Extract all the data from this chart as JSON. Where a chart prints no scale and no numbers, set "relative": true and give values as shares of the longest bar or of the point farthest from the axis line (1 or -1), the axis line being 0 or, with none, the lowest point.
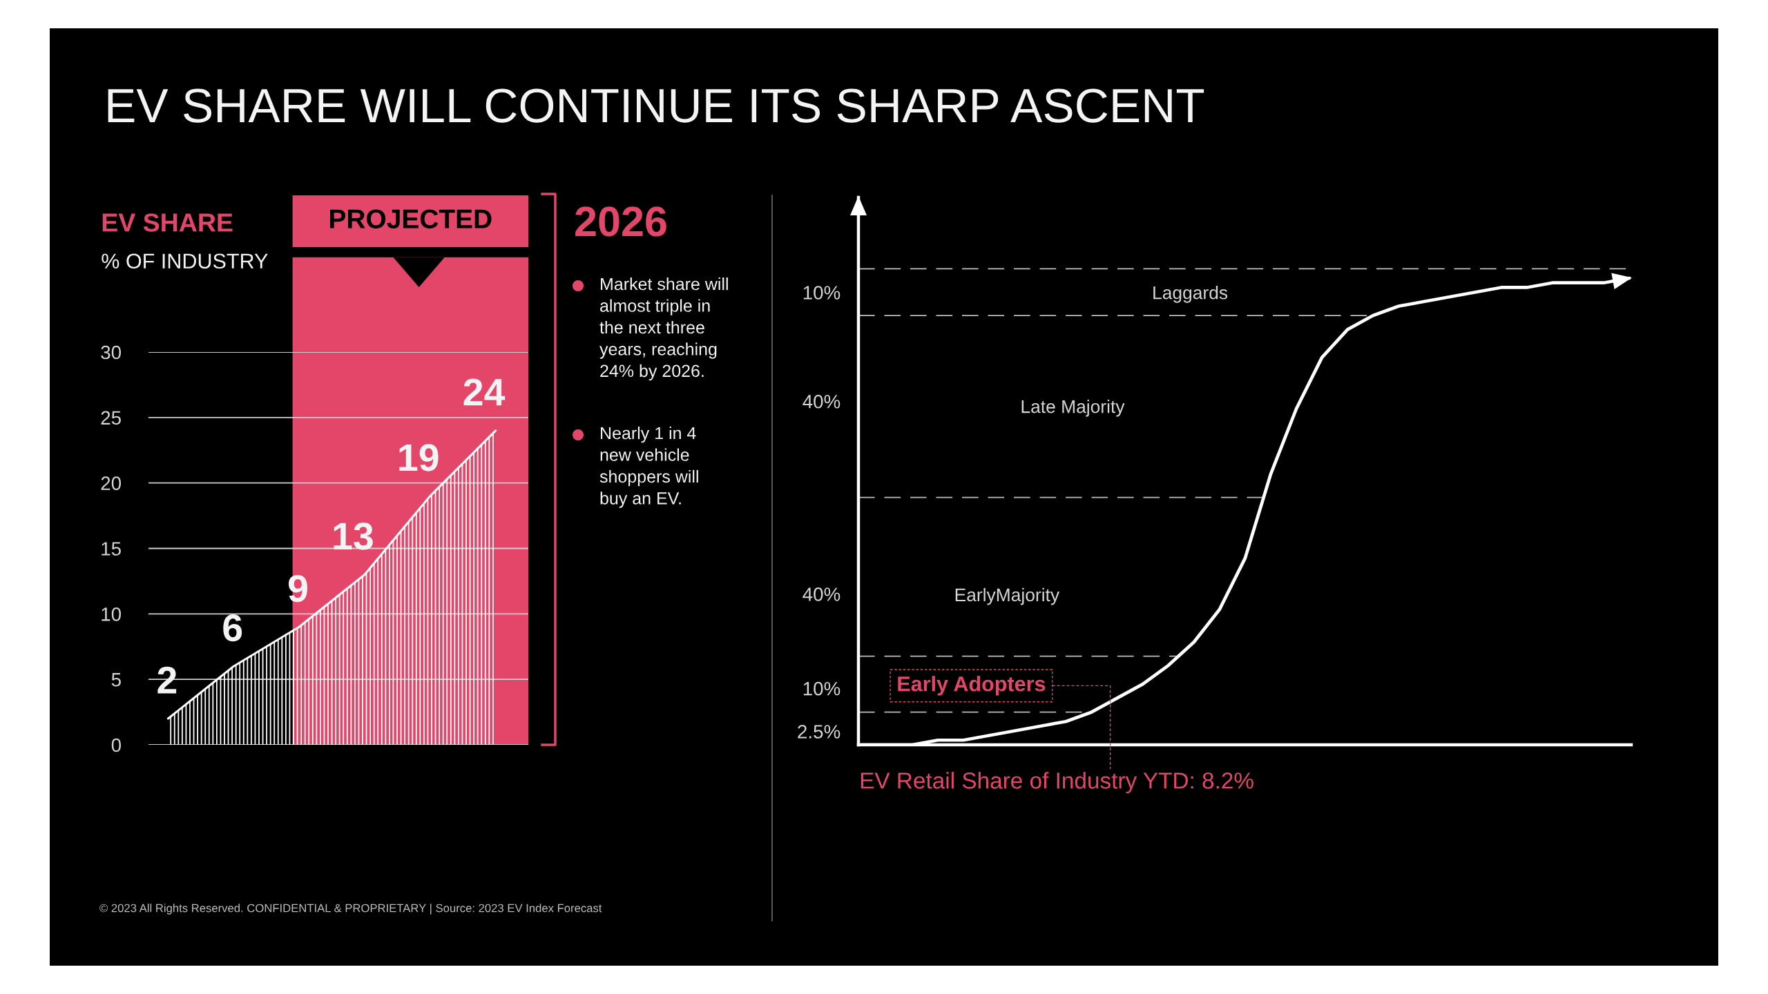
{
  "chart_data": [
    {
      "type": "other",
      "title": "EV SHARE WILL CONTINUE ITS SHARP ASCENT",
      "annotations": [
        "© 2023 All Rights Reserved. CONFIDENTIAL & PROPRIETARY | Source: 2023 EV Index Forecast"
      ]
    },
    {
      "type": "area",
      "title": "EV SHARE",
      "subtitle": "% OF INDUSTRY",
      "categories": [
        null,
        null,
        null,
        null,
        null,
        null
      ],
      "series": [
        {
          "color": "#ffffff",
          "values": [
            2,
            6,
            9,
            13,
            19,
            24
          ]
        }
      ],
      "ylim": [
        0,
        30
      ],
      "yticks": [
        0,
        5,
        10,
        15,
        20,
        25,
        30
      ],
      "grid": "y",
      "tick_labels": "y",
      "data_labels": true,
      "annotations": [
        "PROJECTED"
      ]
    },
    {
      "type": "other",
      "title": "2026",
      "annotations": [
        "Market share will\nalmost triple in\nthe next three\nyears, reaching\n24% by 2026.",
        "Nearly 1 in 4\nnew vehicle\nshoppers will\nbuy an EV."
      ]
    },
    {
      "type": "line",
      "relative": true,
      "tick_labels": false,
      "categories": [
        null,
        null,
        null,
        null,
        null,
        null,
        null,
        null,
        null,
        null,
        null,
        null,
        null,
        null,
        null,
        null,
        null,
        null,
        null,
        null,
        null,
        null,
        null,
        null,
        null,
        null,
        null,
        null,
        null,
        null,
        null
      ],
      "series": [
        {
          "color": "#ffffff",
          "values": [
            0,
            0,
            0,
            0.01,
            0.01,
            0.02,
            0.03,
            0.04,
            0.05,
            0.07,
            0.1,
            0.13,
            0.17,
            0.22,
            0.29,
            0.4,
            0.58,
            0.72,
            0.83,
            0.89,
            0.92,
            0.94,
            0.95,
            0.96,
            0.97,
            0.98,
            0.98,
            0.99,
            0.99,
            0.99,
            1
          ]
        }
      ],
      "ref_lines": [
        {
          "axis": "y",
          "value": 0.07,
          "line_style": "dashed",
          "color": "#bdbdbd"
        },
        {
          "axis": "y",
          "value": 0.19,
          "line_style": "dashed",
          "color": "#bdbdbd"
        },
        {
          "axis": "y",
          "value": 0.53,
          "line_style": "dashed",
          "color": "#bdbdbd"
        },
        {
          "axis": "y",
          "value": 0.92,
          "line_style": "dashed",
          "color": "#bdbdbd"
        },
        {
          "axis": "y",
          "value": 1.02,
          "line_style": "dashed",
          "color": "#bdbdbd"
        }
      ],
      "annotations": [
        "10%",
        "Laggards",
        "40%",
        "Late Majority",
        "40%",
        "EarlyMajority",
        "Early Adopters",
        "10%",
        "2.5%",
        "EV Retail Share of Industry YTD: 8.2%"
      ]
    }
  ]
}
